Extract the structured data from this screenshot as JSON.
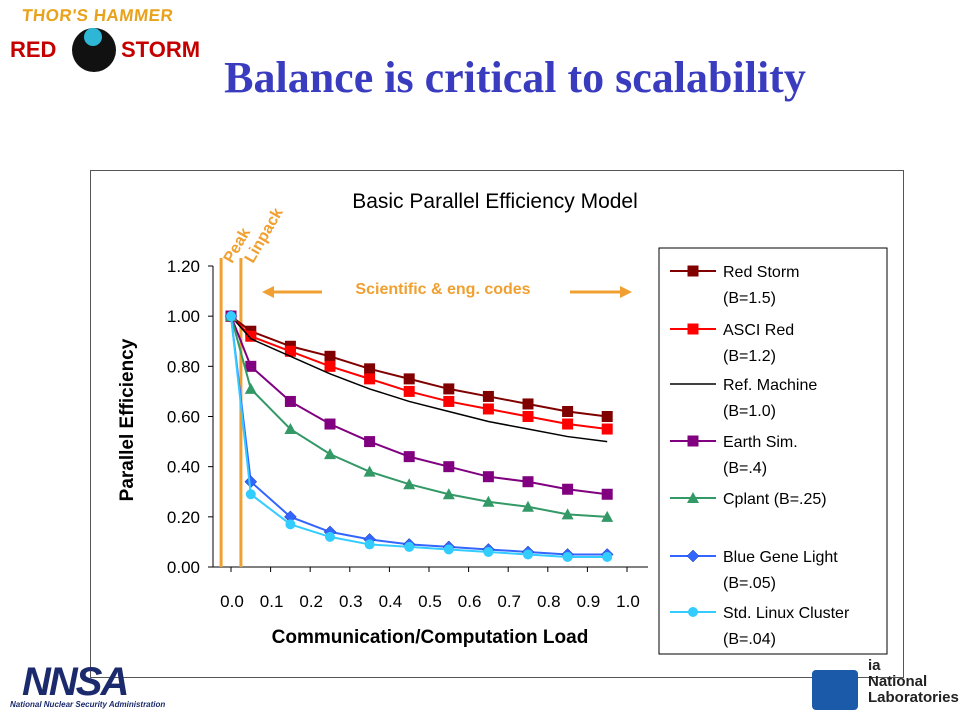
{
  "header": {
    "logo_line1": "THOR'S HAMMER",
    "logo_line2_a": "RED",
    "logo_line2_b": "STORM",
    "title": "Balance is critical to scalability"
  },
  "footer": {
    "nnsa_mark": "NNSA",
    "nnsa_text": "National Nuclear Security Administration",
    "sandia_line1": "ia",
    "sandia_line2": "National",
    "sandia_line3": "Laboratories"
  },
  "chart_data": {
    "type": "line",
    "title": "Basic Parallel Efficiency Model",
    "xlabel": "Communication/Computation Load",
    "ylabel": "Parallel Efficiency",
    "xlim": [
      0.0,
      1.0
    ],
    "ylim": [
      0.0,
      1.2
    ],
    "x_ticks": [
      "0.0",
      "0.1",
      "0.2",
      "0.3",
      "0.4",
      "0.5",
      "0.6",
      "0.7",
      "0.8",
      "0.9",
      "1.0"
    ],
    "y_ticks": [
      "0.00",
      "0.20",
      "0.40",
      "0.60",
      "0.80",
      "1.00",
      "1.20"
    ],
    "grid": false,
    "legend_position": "right",
    "annotations": {
      "peak": "Peak",
      "linpack": "Linpack",
      "codes": "Scientific & eng. codes"
    },
    "series": [
      {
        "name": "Red Storm",
        "param": "(B=1.5)",
        "color": "#800000",
        "marker": "square",
        "x": [
          0.0,
          0.05,
          0.15,
          0.25,
          0.35,
          0.45,
          0.55,
          0.65,
          0.75,
          0.85,
          0.95
        ],
        "y": [
          1.0,
          0.94,
          0.88,
          0.84,
          0.79,
          0.75,
          0.71,
          0.68,
          0.65,
          0.62,
          0.6
        ]
      },
      {
        "name": "ASCI Red",
        "param": "(B=1.2)",
        "color": "#ff0000",
        "marker": "square",
        "x": [
          0.0,
          0.05,
          0.15,
          0.25,
          0.35,
          0.45,
          0.55,
          0.65,
          0.75,
          0.85,
          0.95
        ],
        "y": [
          1.0,
          0.92,
          0.86,
          0.8,
          0.75,
          0.7,
          0.66,
          0.63,
          0.6,
          0.57,
          0.55
        ]
      },
      {
        "name": "Ref. Machine",
        "param": "(B=1.0)",
        "color": "#000000",
        "marker": "none",
        "x": [
          0.0,
          0.05,
          0.15,
          0.25,
          0.35,
          0.45,
          0.55,
          0.65,
          0.75,
          0.85,
          0.95
        ],
        "y": [
          1.0,
          0.91,
          0.84,
          0.77,
          0.71,
          0.66,
          0.62,
          0.58,
          0.55,
          0.52,
          0.5
        ]
      },
      {
        "name": "Earth Sim.",
        "param": "(B=.4)",
        "color": "#800080",
        "marker": "square",
        "x": [
          0.0,
          0.05,
          0.15,
          0.25,
          0.35,
          0.45,
          0.55,
          0.65,
          0.75,
          0.85,
          0.95
        ],
        "y": [
          1.0,
          0.8,
          0.66,
          0.57,
          0.5,
          0.44,
          0.4,
          0.36,
          0.34,
          0.31,
          0.29
        ]
      },
      {
        "name": "Cplant",
        "param": "(B=.25)",
        "color": "#339966",
        "marker": "triangle",
        "x": [
          0.0,
          0.05,
          0.15,
          0.25,
          0.35,
          0.45,
          0.55,
          0.65,
          0.75,
          0.85,
          0.95
        ],
        "y": [
          1.0,
          0.71,
          0.55,
          0.45,
          0.38,
          0.33,
          0.29,
          0.26,
          0.24,
          0.21,
          0.2
        ]
      },
      {
        "name": "Blue Gene Light",
        "param": "(B=.05)",
        "color": "#3366ff",
        "marker": "diamond",
        "x": [
          0.0,
          0.05,
          0.15,
          0.25,
          0.35,
          0.45,
          0.55,
          0.65,
          0.75,
          0.85,
          0.95
        ],
        "y": [
          1.0,
          0.34,
          0.2,
          0.14,
          0.11,
          0.09,
          0.08,
          0.07,
          0.06,
          0.05,
          0.05
        ]
      },
      {
        "name": "Std. Linux Cluster",
        "param": "(B=.04)",
        "color": "#33ccff",
        "marker": "circle",
        "x": [
          0.0,
          0.05,
          0.15,
          0.25,
          0.35,
          0.45,
          0.55,
          0.65,
          0.75,
          0.85,
          0.95
        ],
        "y": [
          1.0,
          0.29,
          0.17,
          0.12,
          0.09,
          0.08,
          0.07,
          0.06,
          0.05,
          0.04,
          0.04
        ]
      }
    ],
    "vertical_markers": [
      {
        "label": "Peak",
        "x": -0.025,
        "color": "#f0a030"
      },
      {
        "label": "Linpack",
        "x": 0.025,
        "color": "#f0a030"
      }
    ]
  }
}
